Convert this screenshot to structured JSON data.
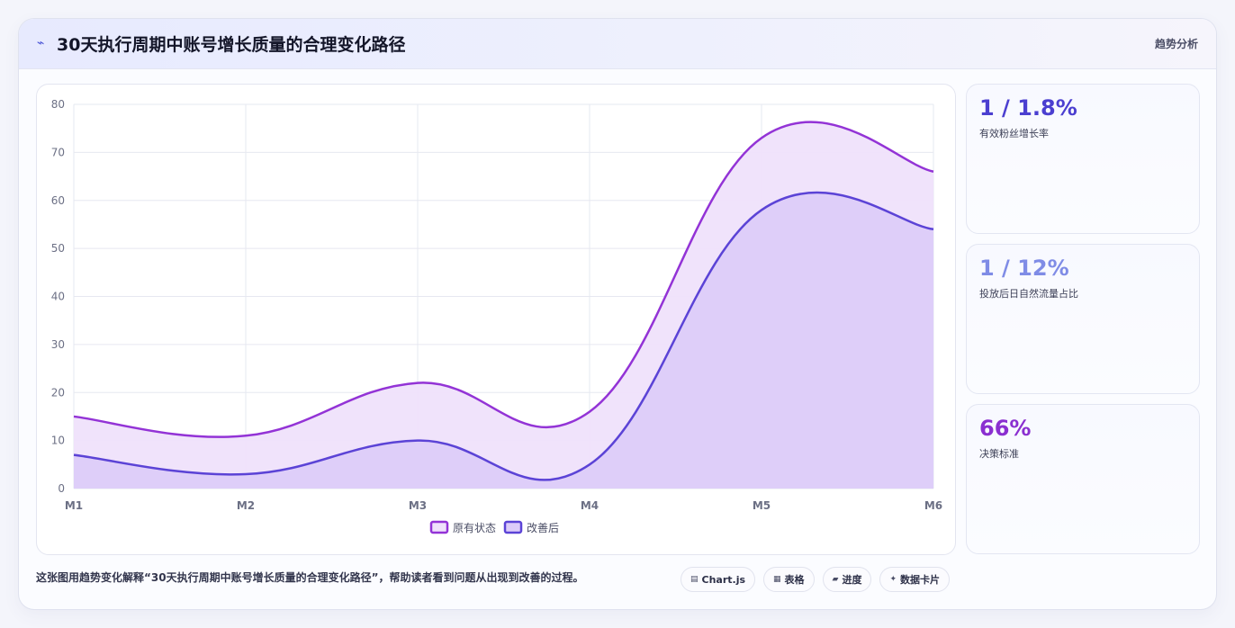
{
  "header": {
    "title": "30天执行周期中账号增长质量的合理变化路径",
    "right_label": "趋势分析",
    "icon": "trend-icon"
  },
  "chart_data": {
    "type": "area",
    "categories": [
      "M1",
      "M2",
      "M3",
      "M4",
      "M5",
      "M6"
    ],
    "series": [
      {
        "name": "原有状态",
        "values": [
          15,
          11,
          22,
          16,
          73,
          66
        ],
        "color": "#9333d6",
        "fill": "#efe1fb"
      },
      {
        "name": "改善后",
        "values": [
          7,
          3,
          10,
          5,
          58,
          54
        ],
        "color": "#5b43d6",
        "fill": "#dcccf9"
      }
    ],
    "ylim": [
      0,
      80
    ],
    "yticks": [
      "0",
      "10",
      "20",
      "30",
      "40",
      "50",
      "60",
      "70",
      "80"
    ],
    "grid": true,
    "legend": "bottom"
  },
  "stats": [
    {
      "value": "1 / 1.8%",
      "label": "有效粉丝增长率",
      "color": "#4b3fd0"
    },
    {
      "value": "1 / 12%",
      "label": "投放后日自然流量占比",
      "color": "#7f8ce6"
    },
    {
      "value": "66%",
      "label": "决策标准",
      "color": "#8a2fd0"
    }
  ],
  "caption": "这张图用趋势变化解释“30天执行周期中账号增长质量的合理变化路径”，帮助读者看到问题从出现到改善的过程。",
  "tags": [
    {
      "icon": "chart-icon",
      "glyph": "▤",
      "label": "Chart.js"
    },
    {
      "icon": "table-icon",
      "glyph": "▦",
      "label": "表格"
    },
    {
      "icon": "progress-icon",
      "glyph": "▰",
      "label": "进度"
    },
    {
      "icon": "card-icon",
      "glyph": "✦",
      "label": "数据卡片"
    }
  ]
}
